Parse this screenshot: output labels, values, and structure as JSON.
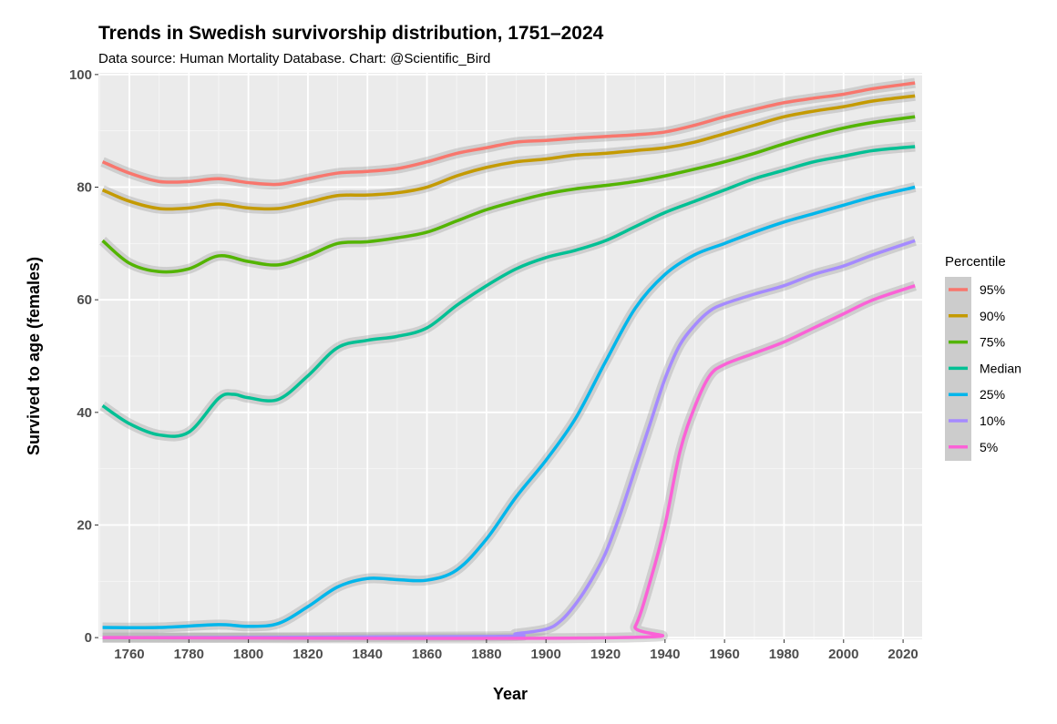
{
  "chart_data": {
    "type": "line",
    "title": "Trends in Swedish survivorship distribution, 1751–2024",
    "subtitle": "Data source: Human Mortality Database. Chart: @Scientific_Bird",
    "xlabel": "Year",
    "ylabel": "Survived to age (females)",
    "xlim": [
      1749.6,
      2026.4
    ],
    "ylim": [
      -0.3,
      100.3
    ],
    "x_ticks": [
      1760,
      1780,
      1800,
      1820,
      1840,
      1860,
      1880,
      1900,
      1920,
      1940,
      1960,
      1980,
      2000,
      2020
    ],
    "y_ticks": [
      0,
      20,
      40,
      60,
      80,
      100
    ],
    "grid": true,
    "legend": {
      "title": "Percentile",
      "position": "right"
    },
    "series": [
      {
        "name": "95%",
        "color": "#F8766D",
        "x": [
          1751,
          1760,
          1770,
          1780,
          1790,
          1800,
          1810,
          1820,
          1830,
          1840,
          1850,
          1860,
          1870,
          1880,
          1890,
          1900,
          1910,
          1920,
          1930,
          1940,
          1950,
          1960,
          1970,
          1980,
          1990,
          2000,
          2010,
          2024
        ],
        "y": [
          84.5,
          82.5,
          81,
          81,
          81.5,
          80.8,
          80.5,
          81.5,
          82.5,
          82.8,
          83.3,
          84.5,
          86,
          87,
          88,
          88.3,
          88.7,
          89,
          89.3,
          89.8,
          91,
          92.5,
          93.8,
          95,
          95.8,
          96.5,
          97.5,
          98.5
        ]
      },
      {
        "name": "90%",
        "color": "#C49A00",
        "x": [
          1751,
          1760,
          1770,
          1780,
          1790,
          1800,
          1810,
          1820,
          1830,
          1840,
          1850,
          1860,
          1870,
          1880,
          1890,
          1900,
          1910,
          1920,
          1930,
          1940,
          1950,
          1960,
          1970,
          1980,
          1990,
          2000,
          2010,
          2024
        ],
        "y": [
          79.5,
          77.5,
          76.2,
          76.3,
          77,
          76.3,
          76.2,
          77.3,
          78.5,
          78.6,
          79,
          80,
          82,
          83.5,
          84.5,
          85,
          85.7,
          86,
          86.5,
          87,
          88,
          89.5,
          91,
          92.5,
          93.5,
          94.3,
          95.3,
          96.2
        ]
      },
      {
        "name": "75%",
        "color": "#53B400",
        "x": [
          1751,
          1760,
          1770,
          1780,
          1790,
          1800,
          1810,
          1820,
          1830,
          1840,
          1850,
          1860,
          1870,
          1880,
          1890,
          1900,
          1910,
          1920,
          1930,
          1940,
          1950,
          1960,
          1970,
          1980,
          1990,
          2000,
          2010,
          2024
        ],
        "y": [
          70.5,
          66.5,
          65,
          65.5,
          67.8,
          66.8,
          66.2,
          67.8,
          70,
          70.3,
          71,
          72,
          74,
          76,
          77.5,
          78.8,
          79.7,
          80.3,
          81,
          82,
          83.2,
          84.5,
          86,
          87.7,
          89.2,
          90.5,
          91.5,
          92.5
        ]
      },
      {
        "name": "Median",
        "color": "#00C094",
        "x": [
          1751,
          1760,
          1770,
          1780,
          1790,
          1795,
          1800,
          1810,
          1820,
          1830,
          1840,
          1850,
          1860,
          1870,
          1880,
          1890,
          1900,
          1910,
          1920,
          1930,
          1940,
          1950,
          1960,
          1970,
          1980,
          1990,
          2000,
          2010,
          2024
        ],
        "y": [
          41.2,
          38,
          36,
          36.5,
          42.5,
          43.2,
          42.6,
          42.3,
          46.5,
          51.5,
          52.8,
          53.5,
          55,
          59,
          62.5,
          65.5,
          67.5,
          68.8,
          70.5,
          73,
          75.5,
          77.5,
          79.5,
          81.5,
          83,
          84.5,
          85.5,
          86.5,
          87.2
        ]
      },
      {
        "name": "25%",
        "color": "#00B6EB",
        "x": [
          1751,
          1770,
          1790,
          1800,
          1810,
          1820,
          1830,
          1840,
          1850,
          1860,
          1870,
          1880,
          1890,
          1900,
          1910,
          1920,
          1930,
          1940,
          1950,
          1960,
          1970,
          1980,
          1990,
          2000,
          2010,
          2024
        ],
        "y": [
          1.8,
          1.8,
          2.3,
          2,
          2.5,
          5.5,
          9,
          10.5,
          10.3,
          10.2,
          12,
          17.5,
          25,
          31.5,
          39,
          49,
          58.5,
          64.5,
          68,
          70,
          72,
          73.8,
          75.3,
          76.8,
          78.3,
          80
        ]
      },
      {
        "name": "10%",
        "color": "#A58AFF",
        "x": [
          1751,
          1880,
          1890,
          1900,
          1905,
          1910,
          1915,
          1920,
          1925,
          1930,
          1935,
          1940,
          1945,
          1950,
          1955,
          1960,
          1970,
          1980,
          1990,
          2000,
          2010,
          2024
        ],
        "y": [
          0,
          0.2,
          0.7,
          1.5,
          3,
          6,
          10,
          15,
          22,
          30,
          38,
          46,
          52,
          55.5,
          58,
          59.3,
          61,
          62.5,
          64.5,
          66,
          68,
          70.5
        ]
      },
      {
        "name": "5%",
        "color": "#FB61D7",
        "x": [
          1751,
          1925,
          1930,
          1935,
          1940,
          1945,
          1950,
          1955,
          1960,
          1970,
          1980,
          1990,
          2000,
          2010,
          2024
        ],
        "y": [
          0,
          0,
          2,
          10,
          20,
          33,
          41,
          46.5,
          48.5,
          50.5,
          52.5,
          55,
          57.5,
          60,
          62.5
        ]
      }
    ]
  }
}
